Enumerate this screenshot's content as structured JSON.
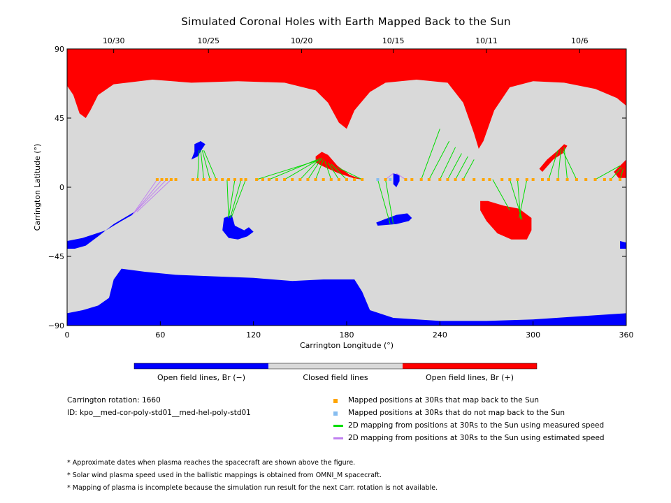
{
  "title": "Simulated Coronal Holes with Earth Mapped Back to the Sun",
  "chart_data": {
    "type": "heatmap",
    "title": "Simulated Coronal Holes with Earth Mapped Back to the Sun",
    "xlabel": "Carrington Longitude (°)",
    "ylabel": "Carrington Latitude (°)",
    "xlim": [
      0,
      360
    ],
    "ylim": [
      -90,
      90
    ],
    "x_ticks": [
      0,
      60,
      120,
      180,
      240,
      300,
      360
    ],
    "y_ticks": [
      90,
      45,
      0,
      -45,
      -90
    ],
    "top_axis_dates": [
      {
        "label": "10/30",
        "lon": 30
      },
      {
        "label": "10/25",
        "lon": 91
      },
      {
        "label": "10/20",
        "lon": 151
      },
      {
        "label": "10/15",
        "lon": 210
      },
      {
        "label": "10/11",
        "lon": 270
      },
      {
        "label": "10/6",
        "lon": 330
      }
    ],
    "colorbar": [
      {
        "label": "Open field lines, Br (−)",
        "color": "#0000ff"
      },
      {
        "label": "Closed field lines",
        "color": "#d9d9d9"
      },
      {
        "label": "Open field lines, Br (+)",
        "color": "#ff0000"
      }
    ],
    "regions": [
      {
        "name": "North polar hole",
        "polarity": "+",
        "polygon": [
          [
            0,
            90
          ],
          [
            360,
            90
          ],
          [
            360,
            53
          ],
          [
            354,
            58
          ],
          [
            340,
            64
          ],
          [
            320,
            68
          ],
          [
            300,
            69
          ],
          [
            285,
            65
          ],
          [
            275,
            50
          ],
          [
            268,
            30
          ],
          [
            265,
            25
          ],
          [
            262,
            35
          ],
          [
            255,
            55
          ],
          [
            245,
            68
          ],
          [
            225,
            70
          ],
          [
            205,
            68
          ],
          [
            195,
            62
          ],
          [
            185,
            50
          ],
          [
            180,
            38
          ],
          [
            175,
            42
          ],
          [
            168,
            55
          ],
          [
            160,
            63
          ],
          [
            140,
            68
          ],
          [
            110,
            69
          ],
          [
            80,
            68
          ],
          [
            55,
            70
          ],
          [
            30,
            67
          ],
          [
            20,
            60
          ],
          [
            15,
            50
          ],
          [
            12,
            45
          ],
          [
            8,
            48
          ],
          [
            4,
            60
          ],
          [
            0,
            66
          ]
        ]
      },
      {
        "name": "South polar hole",
        "polarity": "-",
        "polygon": [
          [
            0,
            -90
          ],
          [
            360,
            -90
          ],
          [
            360,
            -82
          ],
          [
            330,
            -84
          ],
          [
            300,
            -86
          ],
          [
            270,
            -87
          ],
          [
            240,
            -87
          ],
          [
            210,
            -85
          ],
          [
            195,
            -80
          ],
          [
            190,
            -68
          ],
          [
            185,
            -60
          ],
          [
            165,
            -60
          ],
          [
            145,
            -61
          ],
          [
            120,
            -59
          ],
          [
            95,
            -58
          ],
          [
            70,
            -57
          ],
          [
            50,
            -55
          ],
          [
            35,
            -53
          ],
          [
            30,
            -60
          ],
          [
            27,
            -72
          ],
          [
            20,
            -77
          ],
          [
            10,
            -80
          ],
          [
            0,
            -82
          ]
        ]
      },
      {
        "name": "Southern extension",
        "polarity": "-",
        "polygon": [
          [
            0,
            -35
          ],
          [
            10,
            -33
          ],
          [
            25,
            -28
          ],
          [
            35,
            -22
          ],
          [
            42,
            -18
          ],
          [
            45,
            -15
          ],
          [
            40,
            -18
          ],
          [
            30,
            -24
          ],
          [
            20,
            -32
          ],
          [
            12,
            -38
          ],
          [
            5,
            -40
          ],
          [
            0,
            -40
          ]
        ]
      },
      {
        "name": "Hole A",
        "polarity": "-",
        "polygon": [
          [
            82,
            28
          ],
          [
            86,
            30
          ],
          [
            89,
            28
          ],
          [
            87,
            25
          ],
          [
            84,
            20
          ],
          [
            80,
            18
          ],
          [
            82,
            23
          ]
        ]
      },
      {
        "name": "Hole B",
        "polarity": "-",
        "polygon": [
          [
            101,
            -20
          ],
          [
            106,
            -18
          ],
          [
            108,
            -25
          ],
          [
            114,
            -28
          ],
          [
            117,
            -26
          ],
          [
            120,
            -29
          ],
          [
            116,
            -32
          ],
          [
            110,
            -34
          ],
          [
            104,
            -33
          ],
          [
            100,
            -28
          ]
        ]
      },
      {
        "name": "Hole C",
        "polarity": "-",
        "polygon": [
          [
            200,
            -25
          ],
          [
            212,
            -24
          ],
          [
            220,
            -22
          ],
          [
            222,
            -20
          ],
          [
            219,
            -17
          ],
          [
            212,
            -18
          ],
          [
            204,
            -21
          ],
          [
            199,
            -23
          ]
        ]
      },
      {
        "name": "Hole D",
        "polarity": "-",
        "polygon": [
          [
            210,
            9
          ],
          [
            214,
            8
          ],
          [
            214,
            4
          ],
          [
            212,
            0
          ],
          [
            210,
            2
          ]
        ]
      },
      {
        "name": "Hole E",
        "polarity": "-",
        "polygon": [
          [
            356,
            -35
          ],
          [
            360,
            -36
          ],
          [
            360,
            -40
          ],
          [
            356,
            -40
          ]
        ]
      },
      {
        "name": "Hole F",
        "polarity": "+",
        "polygon": [
          [
            160,
            20
          ],
          [
            164,
            23
          ],
          [
            168,
            21
          ],
          [
            174,
            14
          ],
          [
            182,
            8
          ],
          [
            190,
            5
          ],
          [
            184,
            6
          ],
          [
            175,
            9
          ],
          [
            166,
            13
          ],
          [
            160,
            16
          ]
        ]
      },
      {
        "name": "Hole G",
        "polarity": "+",
        "polygon": [
          [
            266,
            -9
          ],
          [
            271,
            -9
          ],
          [
            281,
            -12
          ],
          [
            291,
            -14
          ],
          [
            299,
            -20
          ],
          [
            299,
            -28
          ],
          [
            296,
            -34
          ],
          [
            286,
            -34
          ],
          [
            277,
            -30
          ],
          [
            270,
            -22
          ],
          [
            266,
            -15
          ]
        ]
      },
      {
        "name": "Hole H",
        "polarity": "+",
        "polygon": [
          [
            304,
            12
          ],
          [
            309,
            18
          ],
          [
            316,
            24
          ],
          [
            320,
            28
          ],
          [
            322,
            27
          ],
          [
            319,
            22
          ],
          [
            313,
            18
          ],
          [
            306,
            10
          ]
        ]
      },
      {
        "name": "Hole I",
        "polarity": "+",
        "polygon": [
          [
            352,
            10
          ],
          [
            358,
            16
          ],
          [
            360,
            18
          ],
          [
            360,
            6
          ],
          [
            355,
            6
          ]
        ]
      }
    ],
    "spacecraft_points": {
      "maps_back": [
        [
          58,
          5
        ],
        [
          61,
          5
        ],
        [
          64,
          5
        ],
        [
          67,
          5
        ],
        [
          70,
          5
        ],
        [
          81,
          5
        ],
        [
          84,
          5
        ],
        [
          88,
          5
        ],
        [
          92,
          5
        ],
        [
          96,
          5
        ],
        [
          100,
          5
        ],
        [
          104,
          5
        ],
        [
          108,
          5
        ],
        [
          112,
          5
        ],
        [
          115,
          5
        ],
        [
          122,
          5
        ],
        [
          126,
          5
        ],
        [
          130,
          5
        ],
        [
          135,
          5
        ],
        [
          140,
          5
        ],
        [
          145,
          5
        ],
        [
          150,
          5
        ],
        [
          155,
          5
        ],
        [
          160,
          5
        ],
        [
          165,
          5
        ],
        [
          170,
          5
        ],
        [
          175,
          5
        ],
        [
          180,
          5
        ],
        [
          185,
          5
        ],
        [
          190,
          5
        ],
        [
          205,
          5
        ],
        [
          218,
          5
        ],
        [
          222,
          5
        ],
        [
          228,
          5
        ],
        [
          233,
          5
        ],
        [
          240,
          5
        ],
        [
          245,
          5
        ],
        [
          250,
          5
        ],
        [
          255,
          5
        ],
        [
          262,
          5
        ],
        [
          268,
          5
        ],
        [
          272,
          5
        ],
        [
          280,
          5
        ],
        [
          285,
          5
        ],
        [
          290,
          5
        ],
        [
          296,
          5
        ],
        [
          300,
          5
        ],
        [
          306,
          5
        ],
        [
          310,
          5
        ],
        [
          316,
          5
        ],
        [
          322,
          5
        ],
        [
          328,
          5
        ],
        [
          334,
          5
        ],
        [
          340,
          5
        ],
        [
          346,
          5
        ],
        [
          350,
          5
        ],
        [
          356,
          5
        ]
      ],
      "no_map_back": [
        [
          200,
          5
        ],
        [
          208,
          5
        ]
      ]
    },
    "mappings_measured": [
      [
        [
          84,
          5
        ],
        [
          85,
          24
        ]
      ],
      [
        [
          88,
          5
        ],
        [
          86,
          24
        ]
      ],
      [
        [
          92,
          5
        ],
        [
          87,
          24
        ]
      ],
      [
        [
          96,
          5
        ],
        [
          88,
          24
        ]
      ],
      [
        [
          103,
          5
        ],
        [
          104,
          -20
        ]
      ],
      [
        [
          108,
          5
        ],
        [
          104,
          -20
        ]
      ],
      [
        [
          112,
          5
        ],
        [
          105,
          -20
        ]
      ],
      [
        [
          115,
          5
        ],
        [
          106,
          -19
        ]
      ],
      [
        [
          122,
          5
        ],
        [
          160,
          17
        ]
      ],
      [
        [
          130,
          5
        ],
        [
          161,
          18
        ]
      ],
      [
        [
          140,
          5
        ],
        [
          162,
          18
        ]
      ],
      [
        [
          150,
          5
        ],
        [
          163,
          19
        ]
      ],
      [
        [
          155,
          5
        ],
        [
          164,
          19
        ]
      ],
      [
        [
          160,
          5
        ],
        [
          165,
          18
        ]
      ],
      [
        [
          170,
          5
        ],
        [
          166,
          17
        ]
      ],
      [
        [
          175,
          5
        ],
        [
          168,
          16
        ]
      ],
      [
        [
          180,
          5
        ],
        [
          170,
          15
        ]
      ],
      [
        [
          190,
          5
        ],
        [
          174,
          13
        ]
      ],
      [
        [
          200,
          5
        ],
        [
          208,
          -24
        ]
      ],
      [
        [
          205,
          5
        ],
        [
          210,
          -24
        ]
      ],
      [
        [
          228,
          5
        ],
        [
          240,
          38
        ]
      ],
      [
        [
          233,
          5
        ],
        [
          246,
          30
        ]
      ],
      [
        [
          240,
          5
        ],
        [
          250,
          26
        ]
      ],
      [
        [
          245,
          5
        ],
        [
          254,
          22
        ]
      ],
      [
        [
          250,
          5
        ],
        [
          258,
          20
        ]
      ],
      [
        [
          255,
          5
        ],
        [
          262,
          18
        ]
      ],
      [
        [
          274,
          5
        ],
        [
          285,
          -15
        ]
      ],
      [
        [
          285,
          5
        ],
        [
          293,
          -21
        ]
      ],
      [
        [
          290,
          5
        ],
        [
          292,
          -21
        ]
      ],
      [
        [
          296,
          5
        ],
        [
          291,
          -20
        ]
      ],
      [
        [
          310,
          5
        ],
        [
          316,
          24
        ]
      ],
      [
        [
          316,
          5
        ],
        [
          318,
          25
        ]
      ],
      [
        [
          322,
          5
        ],
        [
          320,
          26
        ]
      ],
      [
        [
          328,
          5
        ],
        [
          319,
          24
        ]
      ],
      [
        [
          340,
          5
        ],
        [
          356,
          14
        ]
      ],
      [
        [
          350,
          5
        ],
        [
          357,
          13
        ]
      ],
      [
        [
          356,
          5
        ],
        [
          358,
          12
        ]
      ]
    ],
    "mappings_estimated": [
      [
        [
          58,
          5
        ],
        [
          42,
          -18
        ]
      ],
      [
        [
          61,
          5
        ],
        [
          43,
          -17
        ]
      ],
      [
        [
          64,
          5
        ],
        [
          44,
          -16
        ]
      ],
      [
        [
          67,
          5
        ],
        [
          45,
          -16
        ]
      ],
      [
        [
          205,
          5
        ],
        [
          210,
          9
        ]
      ],
      [
        [
          218,
          5
        ],
        [
          212,
          9
        ]
      ]
    ]
  },
  "colorbar_labels": {
    "negative": "Open field lines, Br (−)",
    "closed": "Closed field lines",
    "positive": "Open field lines, Br (+)"
  },
  "meta": {
    "rotation": "Carrington rotation: 1660",
    "id": "ID: kpo__med-cor-poly-std01__med-hel-poly-std01"
  },
  "legend": [
    {
      "label": "Mapped positions at 30Rs that map back to the Sun",
      "color": "#ffa500",
      "kind": "square"
    },
    {
      "label": "Mapped positions at 30Rs that do not map back to the Sun",
      "color": "#87bdf0",
      "kind": "square"
    },
    {
      "label": "2D mapping from positions at 30Rs to the Sun using measured speed",
      "color": "#00dd00",
      "kind": "line"
    },
    {
      "label": "2D mapping from positions at 30Rs to the Sun using estimated speed",
      "color": "#c080f0",
      "kind": "line"
    }
  ],
  "notes": [
    "* Approximate dates when plasma reaches the spacecraft are shown above the figure.",
    "* Solar wind plasma speed used in the ballistic mappings is obtained from OMNI_M spacecraft.",
    "* Mapping of plasma is incomplete because the simulation run result for the next Carr. rotation is not available."
  ],
  "colors": {
    "negative": "#0000ff",
    "closed": "#d9d9d9",
    "positive": "#ff0000",
    "mapped": "#ffa500",
    "unmapped": "#87bdf0",
    "measured": "#00dd00",
    "estimated": "#c080f0"
  }
}
